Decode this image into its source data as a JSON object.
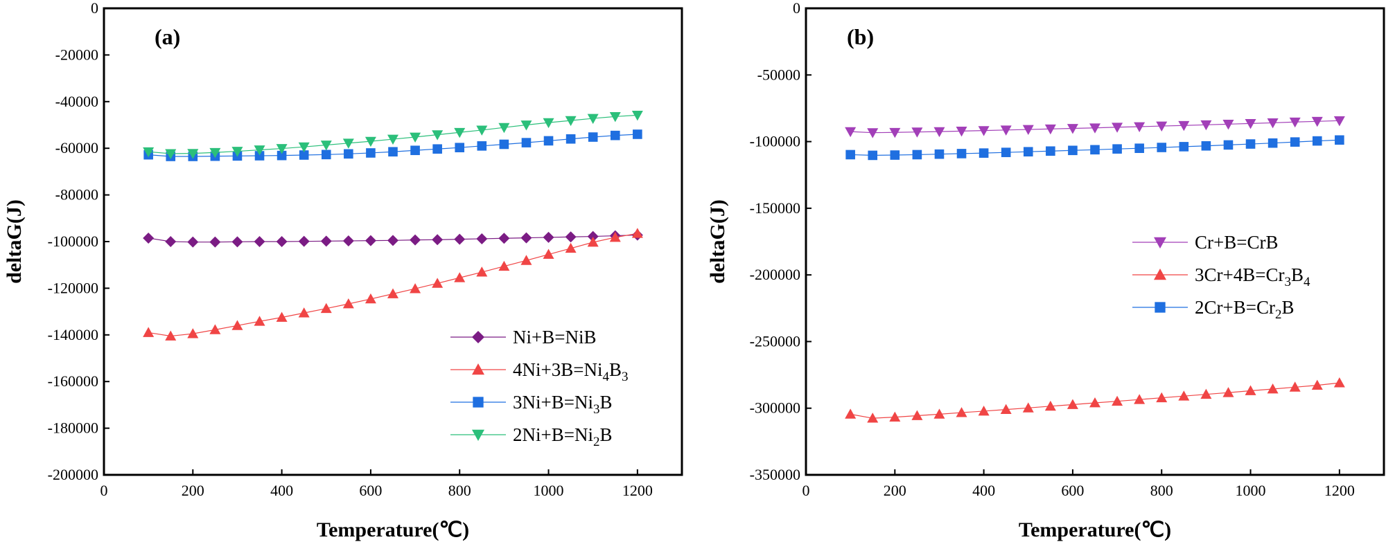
{
  "chart_data": [
    {
      "panel_label": "(a)",
      "type": "line",
      "xlabel": "Temperature(℃)",
      "ylabel": "deltaG(J)",
      "xlim": [
        0,
        1300
      ],
      "ylim": [
        -200000,
        0
      ],
      "xticks": [
        0,
        200,
        400,
        600,
        800,
        1000,
        1200
      ],
      "yticks": [
        0,
        -20000,
        -40000,
        -60000,
        -80000,
        -100000,
        -120000,
        -140000,
        -160000,
        -180000,
        -200000
      ],
      "legend_position": "bottom-right",
      "x": [
        100,
        150,
        200,
        250,
        300,
        350,
        400,
        450,
        500,
        550,
        600,
        650,
        700,
        750,
        800,
        850,
        900,
        950,
        1000,
        1050,
        1100,
        1150,
        1200
      ],
      "series": [
        {
          "name": "Ni+B=NiB",
          "label_parts": [
            [
              "Ni+B=NiB",
              ""
            ]
          ],
          "color": "#7B1C84",
          "marker": "diamond",
          "values": [
            -98500,
            -100000,
            -100200,
            -100200,
            -100100,
            -100000,
            -100000,
            -99900,
            -99800,
            -99700,
            -99600,
            -99500,
            -99300,
            -99200,
            -99000,
            -98800,
            -98600,
            -98400,
            -98200,
            -98000,
            -97800,
            -97500,
            -97200
          ]
        },
        {
          "name": "4Ni+3B=Ni4B3",
          "label_parts": [
            [
              "4Ni+3B=Ni",
              ""
            ],
            [
              "4",
              "sub"
            ],
            [
              "B",
              ""
            ],
            [
              "3",
              "sub"
            ]
          ],
          "color": "#F04545",
          "marker": "triangle-up",
          "values": [
            -139000,
            -140500,
            -139500,
            -137800,
            -136000,
            -134200,
            -132500,
            -130600,
            -128700,
            -126700,
            -124600,
            -122400,
            -120200,
            -117900,
            -115500,
            -113100,
            -110600,
            -108100,
            -105500,
            -102900,
            -100300,
            -98200,
            -96500
          ]
        },
        {
          "name": "3Ni+B=Ni3B",
          "label_parts": [
            [
              "3Ni+B=Ni",
              ""
            ],
            [
              "3",
              "sub"
            ],
            [
              "B",
              ""
            ]
          ],
          "color": "#1F6FE0",
          "marker": "square",
          "values": [
            -62800,
            -63500,
            -63500,
            -63400,
            -63300,
            -63200,
            -63100,
            -62900,
            -62700,
            -62400,
            -62000,
            -61500,
            -60900,
            -60300,
            -59700,
            -59000,
            -58300,
            -57600,
            -56800,
            -56000,
            -55200,
            -54500,
            -54000
          ]
        },
        {
          "name": "2Ni+B=Ni2B",
          "label_parts": [
            [
              "2Ni+B=Ni",
              ""
            ],
            [
              "2",
              "sub"
            ],
            [
              "B",
              ""
            ]
          ],
          "color": "#2BBF7A",
          "marker": "triangle-down",
          "values": [
            -61500,
            -62300,
            -62200,
            -61800,
            -61300,
            -60700,
            -60100,
            -59400,
            -58600,
            -57800,
            -57000,
            -56100,
            -55200,
            -54200,
            -53200,
            -52200,
            -51100,
            -50000,
            -49000,
            -48100,
            -47200,
            -46400,
            -45800
          ]
        }
      ]
    },
    {
      "panel_label": "(b)",
      "type": "line",
      "xlabel": "Temperature(℃)",
      "ylabel": "deltaG(J)",
      "xlim": [
        0,
        1300
      ],
      "ylim": [
        -350000,
        0
      ],
      "xticks": [
        0,
        200,
        400,
        600,
        800,
        1000,
        1200
      ],
      "yticks": [
        0,
        -50000,
        -100000,
        -150000,
        -200000,
        -250000,
        -300000,
        -350000
      ],
      "legend_position": "center-right",
      "x": [
        100,
        150,
        200,
        250,
        300,
        350,
        400,
        450,
        500,
        550,
        600,
        650,
        700,
        750,
        800,
        850,
        900,
        950,
        1000,
        1050,
        1100,
        1150,
        1200
      ],
      "series": [
        {
          "name": "Cr+B=CrB",
          "label_parts": [
            [
              "Cr+B=CrB",
              ""
            ]
          ],
          "color": "#A23FB8",
          "marker": "triangle-down",
          "values": [
            -92500,
            -93300,
            -93100,
            -92800,
            -92500,
            -92100,
            -91700,
            -91300,
            -90900,
            -90500,
            -90100,
            -89700,
            -89200,
            -88800,
            -88300,
            -87900,
            -87400,
            -86900,
            -86400,
            -85900,
            -85300,
            -84800,
            -84300
          ]
        },
        {
          "name": "3Cr+4B=Cr3B4",
          "label_parts": [
            [
              "3Cr+4B=Cr",
              ""
            ],
            [
              "3",
              "sub"
            ],
            [
              "B",
              ""
            ],
            [
              "4",
              "sub"
            ]
          ],
          "color": "#F04545",
          "marker": "triangle-up",
          "values": [
            -304500,
            -307500,
            -306700,
            -305600,
            -304500,
            -303300,
            -302200,
            -301000,
            -299800,
            -298500,
            -297300,
            -296000,
            -294800,
            -293500,
            -292200,
            -290900,
            -289600,
            -288300,
            -286900,
            -285600,
            -284200,
            -282800,
            -281000
          ]
        },
        {
          "name": "2Cr+B=Cr2B",
          "label_parts": [
            [
              "2Cr+B=Cr",
              ""
            ],
            [
              "2",
              "sub"
            ],
            [
              "B",
              ""
            ]
          ],
          "color": "#1F6FE0",
          "marker": "square",
          "values": [
            -109800,
            -110300,
            -110100,
            -109800,
            -109400,
            -109000,
            -108600,
            -108100,
            -107600,
            -107100,
            -106600,
            -106100,
            -105500,
            -105000,
            -104400,
            -103800,
            -103200,
            -102500,
            -101800,
            -101100,
            -100300,
            -99500,
            -98800
          ]
        }
      ]
    }
  ]
}
